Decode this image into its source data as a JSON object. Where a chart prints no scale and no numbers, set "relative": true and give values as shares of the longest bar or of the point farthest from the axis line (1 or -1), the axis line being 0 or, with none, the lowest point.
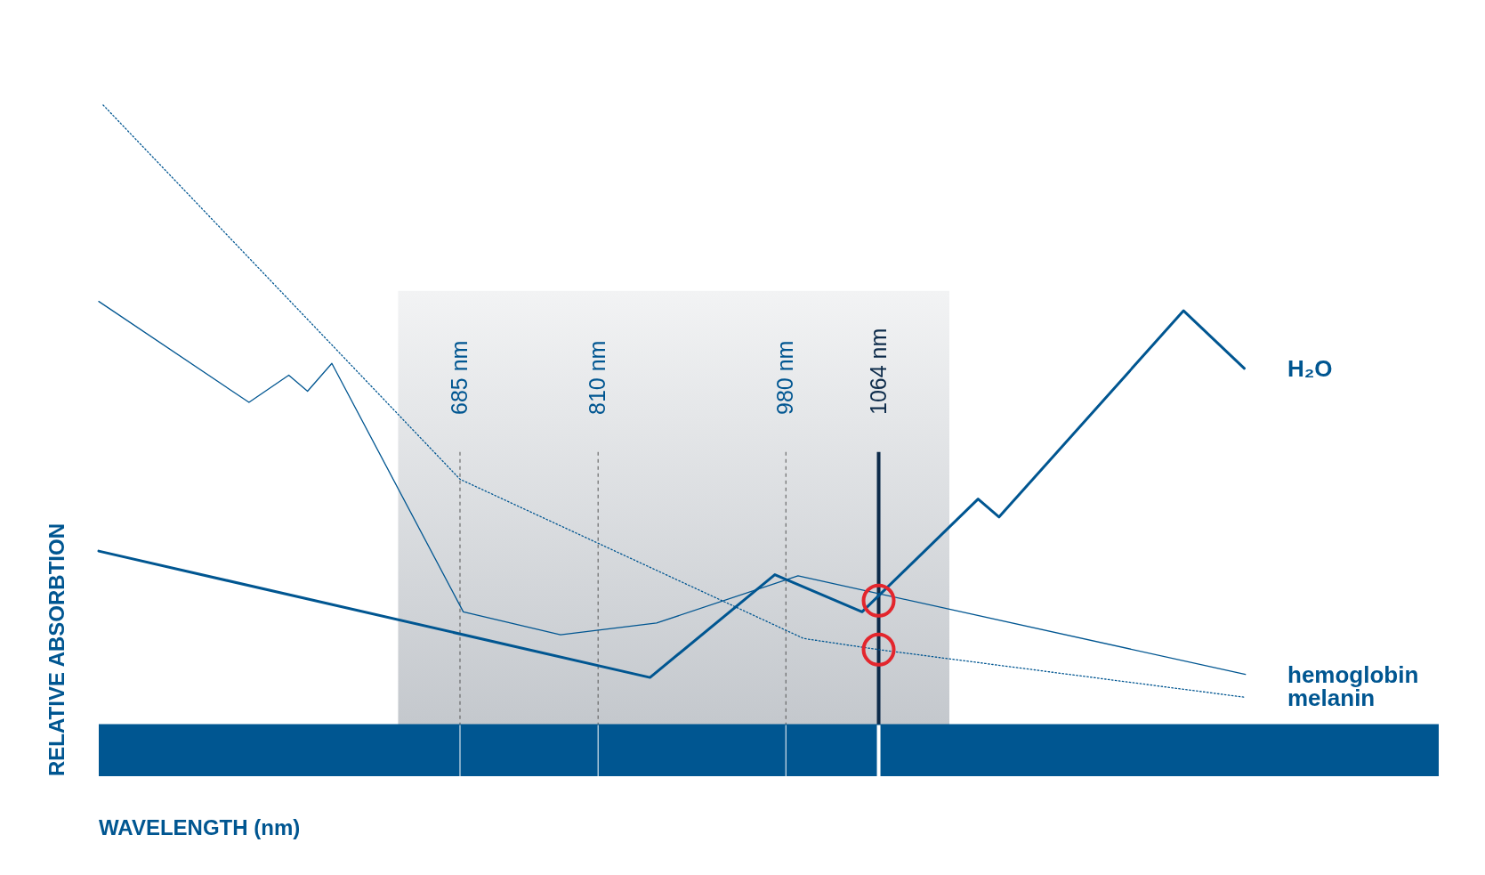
{
  "chart_data": {
    "type": "line",
    "relative": true,
    "xlabel": "WAVELENGTH (nm)",
    "ylabel": "RELATIVE ABSORBTION",
    "xlim": [
      358,
      1571
    ],
    "legend": false,
    "xticks": [
      {
        "value": 685,
        "label": "685 nm"
      },
      {
        "value": 810,
        "label": "810 nm"
      },
      {
        "value": 980,
        "label": "980 nm"
      },
      {
        "value": 1064,
        "label": "1064 nm"
      }
    ],
    "series": [
      {
        "name": "H₂O",
        "color": "#005691",
        "line_style": "solid",
        "x": [
          358,
          857,
          970,
          1049,
          1154,
          1173,
          1340,
          1395
        ],
        "values": [
          0.28,
          0.076,
          0.242,
          0.182,
          0.364,
          0.335,
          0.668,
          0.575
        ]
      },
      {
        "name": "hemoglobin",
        "color": "#005691",
        "line_style": "solid",
        "x": [
          358,
          494,
          530,
          547,
          569,
          688,
          776,
          863,
          991,
          1396
        ],
        "values": [
          0.683,
          0.52,
          0.564,
          0.538,
          0.583,
          0.182,
          0.145,
          0.164,
          0.24,
          0.081
        ]
      },
      {
        "name": "melanin",
        "color": "#005691",
        "line_style": "dotted",
        "x": [
          362,
          685,
          996,
          1064,
          1396
        ],
        "values": [
          1.0,
          0.396,
          0.139,
          0.121,
          0.044
        ]
      },
      {
        "type": "scatter",
        "color": "#e3262d",
        "marker": "circle",
        "x": [
          1064,
          1064
        ],
        "values": [
          0.2,
          0.121
        ]
      }
    ],
    "ref_lines": [
      {
        "axis": "x",
        "value": 685,
        "color": "#555555",
        "line_style": "dashed"
      },
      {
        "axis": "x",
        "value": 810,
        "color": "#555555",
        "line_style": "dashed"
      },
      {
        "axis": "x",
        "value": 980,
        "color": "#555555",
        "line_style": "dashed"
      },
      {
        "axis": "x",
        "value": 1064,
        "color": "#0d2b4a",
        "line_style": "solid"
      }
    ],
    "bands": [
      {
        "axis": "x",
        "from": 629,
        "to": 1128,
        "color": "#c4c8cd"
      }
    ]
  }
}
